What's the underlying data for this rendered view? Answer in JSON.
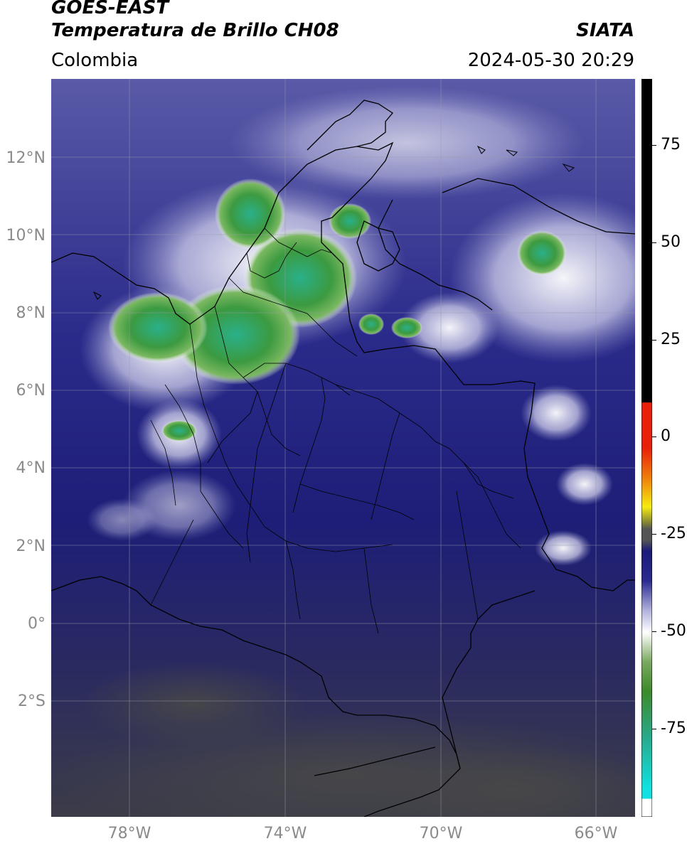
{
  "header": {
    "satellite": "GOES-EAST",
    "product": "Temperatura de Brillo CH08",
    "region": "Colombia",
    "agency": "SIATA",
    "datetime": "2024-05-30 20:29"
  },
  "map": {
    "lat_labels": [
      "12°N",
      "10°N",
      "8°N",
      "6°N",
      "4°N",
      "2°N",
      "0°",
      "2°S"
    ],
    "lon_labels": [
      "78°W",
      "74°W",
      "70°W",
      "66°W"
    ],
    "extent": {
      "lon_min": -80,
      "lon_max": -65,
      "lat_min": -5,
      "lat_max": 14
    },
    "gridlines": true
  },
  "colorbar": {
    "unit": "°C",
    "tick_labels": [
      "75",
      "50",
      "25",
      "0",
      "-25",
      "-50",
      "-75"
    ],
    "range": [
      -95,
      90
    ],
    "colors": {
      "black": "#000000",
      "red": "#e8200a",
      "orange": "#f07c0a",
      "yellow": "#f4ec10",
      "olive": "#8a8a30",
      "gray": "#555555",
      "navy": "#1a1a7a",
      "lavender": "#b0b0dc",
      "white": "#ffffff",
      "green": "#4c9a2a",
      "teal": "#2aa888",
      "cyan": "#10e0e0"
    }
  }
}
